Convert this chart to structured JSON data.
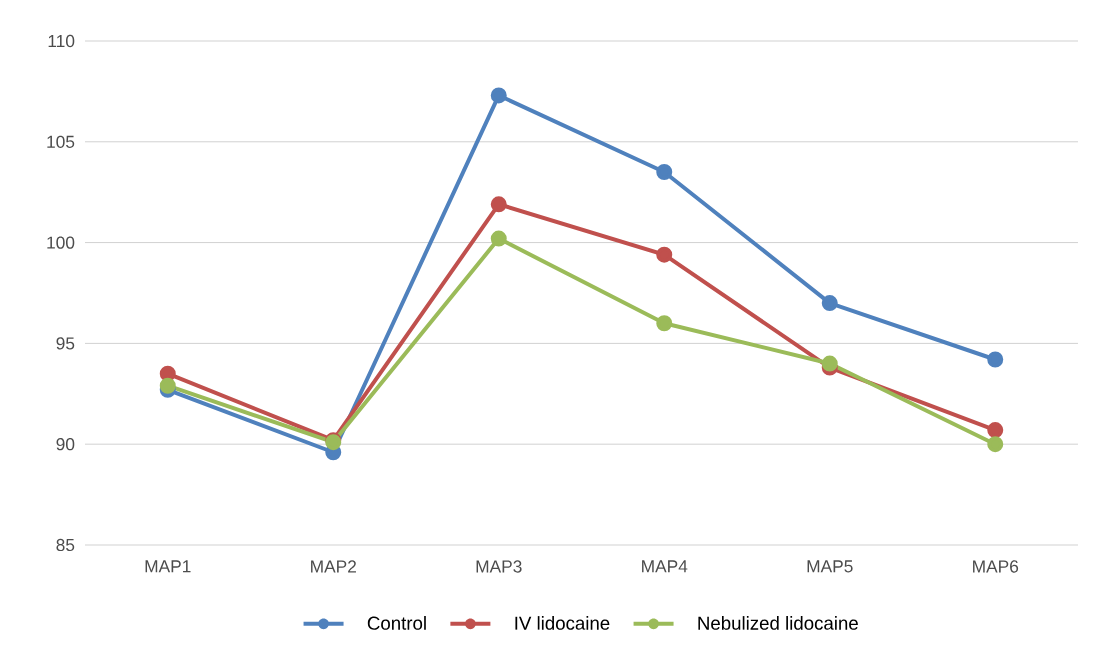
{
  "chart_data": {
    "type": "line",
    "categories": [
      "MAP1",
      "MAP2",
      "MAP3",
      "MAP4",
      "MAP5",
      "MAP6"
    ],
    "series": [
      {
        "name": "Control",
        "color": "#4f81bd",
        "values": [
          92.7,
          89.6,
          107.3,
          103.5,
          97.0,
          94.2
        ]
      },
      {
        "name": "IV lidocaine",
        "color": "#c0504d",
        "values": [
          93.5,
          90.2,
          101.9,
          99.4,
          93.8,
          90.7
        ]
      },
      {
        "name": "Nebulized lidocaine",
        "color": "#9bbb59",
        "values": [
          92.9,
          90.1,
          100.2,
          96.0,
          94.0,
          90.0
        ]
      }
    ],
    "ylim": [
      85,
      110
    ],
    "yticks": [
      85,
      90,
      95,
      100,
      105,
      110
    ],
    "grid": "y",
    "legend": "bottom",
    "marker": "circle",
    "line_style": "solid"
  }
}
